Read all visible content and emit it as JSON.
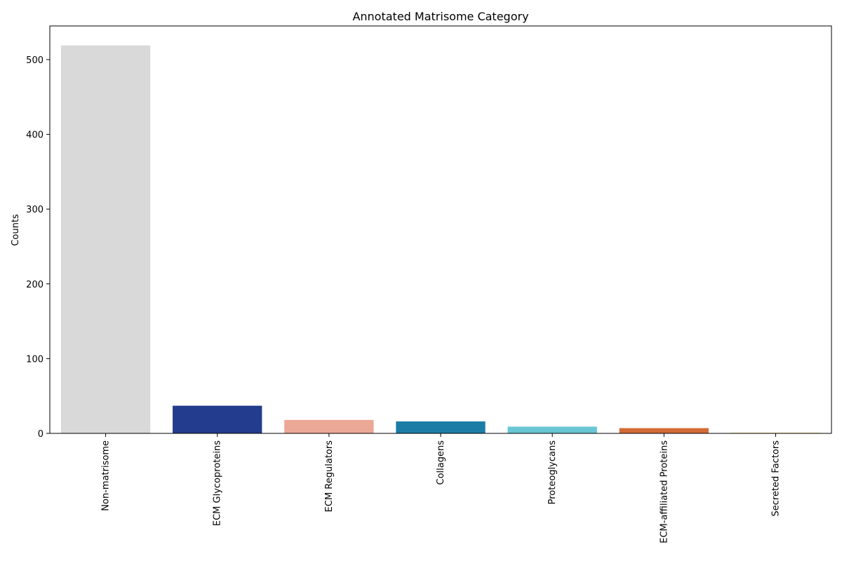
{
  "chart_data": {
    "type": "bar",
    "title": "Annotated Matrisome Category",
    "xlabel": "",
    "ylabel": "Counts",
    "categories": [
      "Non-matrisome",
      "ECM Glycoproteins",
      "ECM Regulators",
      "Collagens",
      "Proteoglycans",
      "ECM-affiliated Proteins",
      "Secreted Factors"
    ],
    "values": [
      519,
      37,
      18,
      16,
      9,
      7,
      1
    ],
    "colors": [
      "#d9d9d9",
      "#243c8d",
      "#eca896",
      "#1b7da6",
      "#68c6d3",
      "#d36b37",
      "#f8dfa4"
    ],
    "ylim": [
      0,
      545
    ],
    "yticks": [
      0,
      100,
      200,
      300,
      400,
      500
    ],
    "grid": false,
    "legend": "none"
  }
}
